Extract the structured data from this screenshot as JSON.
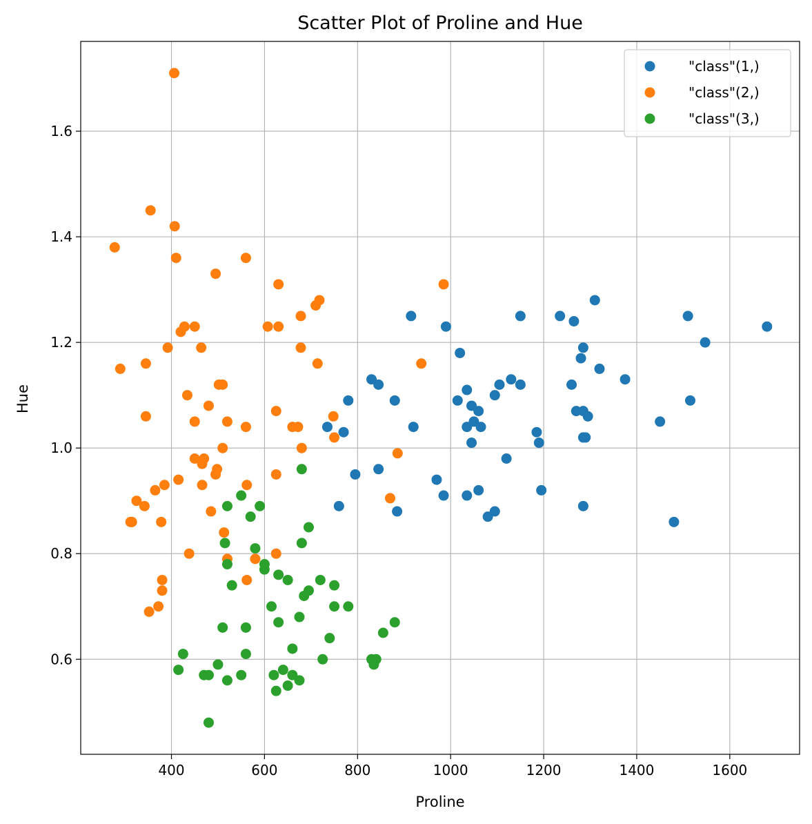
{
  "chart_data": {
    "type": "scatter",
    "title": "Scatter Plot of Proline and Hue",
    "xlabel": "Proline",
    "ylabel": "Hue",
    "xlim": [
      205,
      1750
    ],
    "ylim": [
      0.42,
      1.77
    ],
    "xticks": [
      400,
      600,
      800,
      1000,
      1200,
      1400,
      1600
    ],
    "yticks": [
      0.6,
      0.8,
      1.0,
      1.2,
      1.4,
      1.6
    ],
    "ytick_labels": [
      "0.6",
      "0.8",
      "1.0",
      "1.2",
      "1.4",
      "1.6"
    ],
    "grid": true,
    "legend_position": "top-right",
    "series": [
      {
        "name": "\"class\"(1,)",
        "color": "#1f77b4",
        "points": [
          [
            735,
            1.04
          ],
          [
            770,
            1.03
          ],
          [
            780,
            1.09
          ],
          [
            760,
            0.89
          ],
          [
            795,
            0.95
          ],
          [
            830,
            1.13
          ],
          [
            845,
            1.12
          ],
          [
            845,
            0.96
          ],
          [
            880,
            1.09
          ],
          [
            885,
            0.88
          ],
          [
            915,
            1.25
          ],
          [
            920,
            1.04
          ],
          [
            970,
            0.94
          ],
          [
            985,
            0.91
          ],
          [
            990,
            1.23
          ],
          [
            1015,
            1.09
          ],
          [
            1020,
            1.18
          ],
          [
            1035,
            1.11
          ],
          [
            1035,
            1.04
          ],
          [
            1035,
            0.91
          ],
          [
            1045,
            1.08
          ],
          [
            1045,
            1.01
          ],
          [
            1050,
            1.05
          ],
          [
            1060,
            1.07
          ],
          [
            1060,
            0.92
          ],
          [
            1065,
            1.04
          ],
          [
            1080,
            0.87
          ],
          [
            1095,
            1.1
          ],
          [
            1095,
            0.88
          ],
          [
            1105,
            1.12
          ],
          [
            1120,
            0.98
          ],
          [
            1130,
            1.13
          ],
          [
            1150,
            1.25
          ],
          [
            1150,
            1.12
          ],
          [
            1185,
            1.03
          ],
          [
            1190,
            1.01
          ],
          [
            1195,
            0.92
          ],
          [
            1235,
            1.25
          ],
          [
            1260,
            1.12
          ],
          [
            1265,
            1.24
          ],
          [
            1270,
            1.07
          ],
          [
            1280,
            1.17
          ],
          [
            1285,
            1.19
          ],
          [
            1285,
            1.07
          ],
          [
            1285,
            1.02
          ],
          [
            1285,
            0.89
          ],
          [
            1290,
            1.02
          ],
          [
            1295,
            1.06
          ],
          [
            1310,
            1.28
          ],
          [
            1320,
            1.15
          ],
          [
            1375,
            1.13
          ],
          [
            1450,
            1.05
          ],
          [
            1480,
            0.86
          ],
          [
            1510,
            1.25
          ],
          [
            1515,
            1.09
          ],
          [
            1547,
            1.2
          ],
          [
            1680,
            1.23
          ]
        ]
      },
      {
        "name": "\"class\"(2,)",
        "color": "#ff7f0e",
        "points": [
          [
            278,
            1.38
          ],
          [
            290,
            1.15
          ],
          [
            312,
            0.86
          ],
          [
            315,
            0.86
          ],
          [
            325,
            0.9
          ],
          [
            342,
            0.89
          ],
          [
            345,
            1.16
          ],
          [
            345,
            1.06
          ],
          [
            352,
            0.69
          ],
          [
            355,
            1.45
          ],
          [
            365,
            0.92
          ],
          [
            372,
            0.7
          ],
          [
            378,
            0.86
          ],
          [
            380,
            0.75
          ],
          [
            380,
            0.73
          ],
          [
            385,
            0.93
          ],
          [
            392,
            1.19
          ],
          [
            406,
            1.71
          ],
          [
            407,
            1.42
          ],
          [
            410,
            1.36
          ],
          [
            415,
            0.94
          ],
          [
            420,
            1.22
          ],
          [
            428,
            1.23
          ],
          [
            434,
            1.1
          ],
          [
            438,
            0.8
          ],
          [
            450,
            1.23
          ],
          [
            450,
            1.05
          ],
          [
            450,
            0.98
          ],
          [
            464,
            1.19
          ],
          [
            466,
            0.97
          ],
          [
            466,
            0.93
          ],
          [
            470,
            0.98
          ],
          [
            480,
            1.08
          ],
          [
            485,
            0.88
          ],
          [
            495,
            0.95
          ],
          [
            495,
            1.33
          ],
          [
            498,
            0.96
          ],
          [
            502,
            1.12
          ],
          [
            510,
            1.12
          ],
          [
            510,
            1.0
          ],
          [
            513,
            0.84
          ],
          [
            520,
            1.05
          ],
          [
            520,
            0.79
          ],
          [
            560,
            1.36
          ],
          [
            560,
            1.04
          ],
          [
            562,
            0.93
          ],
          [
            562,
            0.75
          ],
          [
            580,
            0.79
          ],
          [
            607,
            1.23
          ],
          [
            625,
            1.07
          ],
          [
            625,
            0.95
          ],
          [
            625,
            0.8
          ],
          [
            630,
            1.31
          ],
          [
            630,
            1.23
          ],
          [
            660,
            1.04
          ],
          [
            672,
            1.04
          ],
          [
            678,
            1.25
          ],
          [
            678,
            1.19
          ],
          [
            680,
            1.0
          ],
          [
            710,
            1.27
          ],
          [
            714,
            1.16
          ],
          [
            718,
            1.28
          ],
          [
            748,
            1.06
          ],
          [
            750,
            1.02
          ],
          [
            870,
            0.905
          ],
          [
            886,
            0.99
          ],
          [
            937,
            1.16
          ],
          [
            985,
            1.31
          ]
        ]
      },
      {
        "name": "\"class\"(3,)",
        "color": "#2ca02c",
        "points": [
          [
            415,
            0.58
          ],
          [
            425,
            0.61
          ],
          [
            470,
            0.57
          ],
          [
            480,
            0.57
          ],
          [
            480,
            0.48
          ],
          [
            500,
            0.59
          ],
          [
            510,
            0.66
          ],
          [
            515,
            0.82
          ],
          [
            520,
            0.89
          ],
          [
            520,
            0.78
          ],
          [
            520,
            0.56
          ],
          [
            530,
            0.74
          ],
          [
            550,
            0.91
          ],
          [
            550,
            0.57
          ],
          [
            560,
            0.66
          ],
          [
            560,
            0.61
          ],
          [
            570,
            0.87
          ],
          [
            580,
            0.81
          ],
          [
            590,
            0.89
          ],
          [
            600,
            0.78
          ],
          [
            600,
            0.77
          ],
          [
            615,
            0.7
          ],
          [
            620,
            0.57
          ],
          [
            625,
            0.54
          ],
          [
            630,
            0.76
          ],
          [
            630,
            0.67
          ],
          [
            640,
            0.58
          ],
          [
            650,
            0.75
          ],
          [
            650,
            0.55
          ],
          [
            660,
            0.62
          ],
          [
            660,
            0.57
          ],
          [
            675,
            0.68
          ],
          [
            675,
            0.56
          ],
          [
            680,
            0.96
          ],
          [
            680,
            0.82
          ],
          [
            685,
            0.72
          ],
          [
            695,
            0.85
          ],
          [
            695,
            0.73
          ],
          [
            720,
            0.75
          ],
          [
            725,
            0.6
          ],
          [
            740,
            0.64
          ],
          [
            750,
            0.74
          ],
          [
            750,
            0.7
          ],
          [
            780,
            0.7
          ],
          [
            830,
            0.6
          ],
          [
            835,
            0.59
          ],
          [
            840,
            0.6
          ],
          [
            855,
            0.65
          ],
          [
            880,
            0.67
          ]
        ]
      }
    ]
  }
}
